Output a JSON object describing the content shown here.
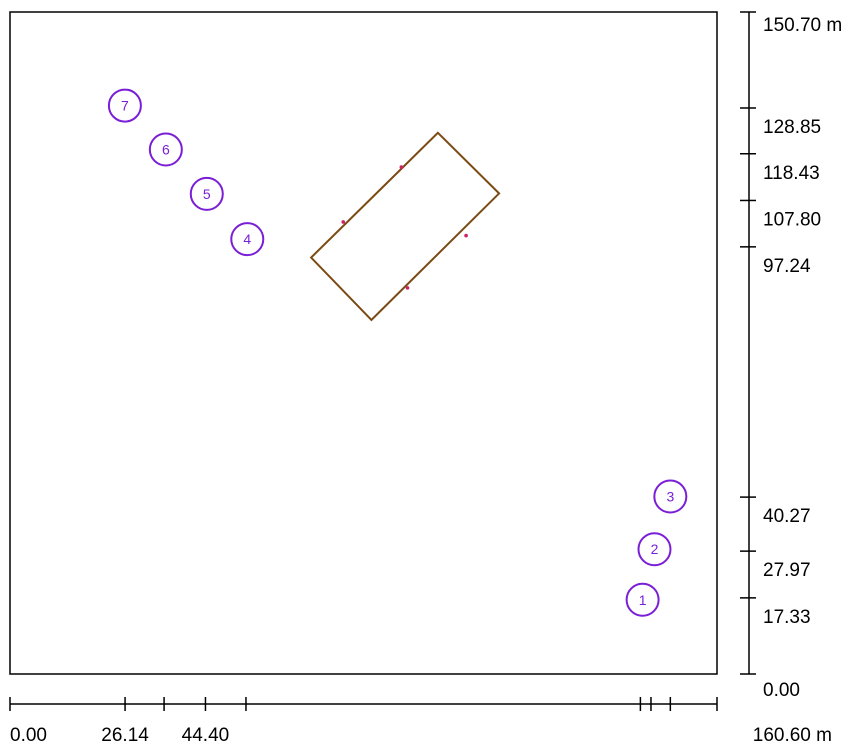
{
  "diagram": {
    "extent": {
      "x_max": 160.6,
      "y_max": 150.7
    },
    "x_axis": {
      "ticks": [
        {
          "value": 0.0,
          "label": "0.00"
        },
        {
          "value": 26.14,
          "label": "26.14"
        },
        {
          "value": 35.0,
          "label": ""
        },
        {
          "value": 44.4,
          "label": "44.40"
        },
        {
          "value": 53.6,
          "label": ""
        },
        {
          "value": 143.2,
          "label": ""
        },
        {
          "value": 145.6,
          "label": ""
        },
        {
          "value": 150.0,
          "label": ""
        },
        {
          "value": 160.6,
          "label": "160.60 m"
        }
      ]
    },
    "y_axis": {
      "ticks": [
        {
          "value": 0.0,
          "label": "0.00"
        },
        {
          "value": 17.33,
          "label": "17.33"
        },
        {
          "value": 27.97,
          "label": "27.97"
        },
        {
          "value": 40.27,
          "label": "40.27"
        },
        {
          "value": 97.24,
          "label": "97.24"
        },
        {
          "value": 107.8,
          "label": "107.80"
        },
        {
          "value": 118.43,
          "label": "118.43"
        },
        {
          "value": 128.85,
          "label": "128.85"
        },
        {
          "value": 150.7,
          "label": "150.70 m"
        }
      ]
    },
    "markers": [
      {
        "id": "1",
        "x": 143.7,
        "y": 16.9
      },
      {
        "id": "2",
        "x": 146.4,
        "y": 28.4
      },
      {
        "id": "3",
        "x": 150.0,
        "y": 40.4
      },
      {
        "id": "4",
        "x": 53.9,
        "y": 99.0
      },
      {
        "id": "5",
        "x": 44.7,
        "y": 109.3
      },
      {
        "id": "6",
        "x": 35.4,
        "y": 119.4
      },
      {
        "id": "7",
        "x": 26.1,
        "y": 129.4
      }
    ],
    "building": {
      "outline_color": "#7b4a12",
      "corners": [
        {
          "x": 97.2,
          "y": 123.2
        },
        {
          "x": 111.1,
          "y": 109.4
        },
        {
          "x": 82.1,
          "y": 80.6
        },
        {
          "x": 68.4,
          "y": 94.8
        }
      ],
      "openings": [
        {
          "x": 88.9,
          "y": 115.4
        },
        {
          "x": 75.7,
          "y": 102.9
        },
        {
          "x": 103.6,
          "y": 99.8
        },
        {
          "x": 90.3,
          "y": 87.9
        }
      ]
    },
    "colors": {
      "marker": "#7a1fd6",
      "frame": "#000000",
      "opening": "#cc2266"
    }
  }
}
